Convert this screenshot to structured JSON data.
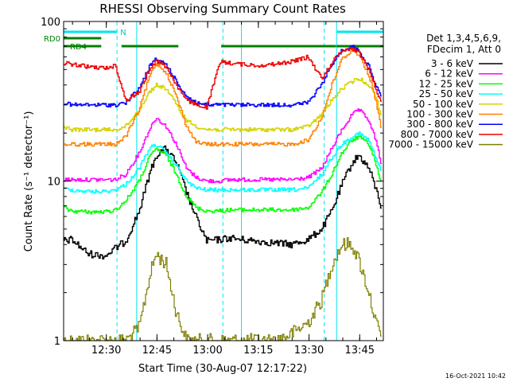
{
  "chart_data": {
    "type": "line",
    "title": "RHESSI Observing Summary Count Rates",
    "xlabel": "Start Time (30-Aug-07 12:17:22)",
    "ylabel": "Count Rate (s⁻¹ detector⁻¹)",
    "y_scale": "log",
    "ylim": [
      1,
      100
    ],
    "xlim": [
      "12:17:22",
      "13:52:00"
    ],
    "x_ticks": [
      "12:30",
      "12:45",
      "13:00",
      "13:15",
      "13:30",
      "13:45"
    ],
    "y_ticks": [
      "1",
      "10",
      "100"
    ],
    "legend_placement": "right",
    "legend_header": [
      "Det 1,3,4,5,6,9,",
      "FDecim 1, Att 0"
    ],
    "footer_date": "16-Oct-2021 10:42",
    "flag_labels": [
      "N",
      "RD0",
      "RD4"
    ],
    "colors": {
      "3 - 6 keV": "#000000",
      "6 - 12 keV": "#ff00ff",
      "12 - 25 keV": "#00ff00",
      "25 - 50 keV": "#00ffff",
      "50 - 100 keV": "#d4d400",
      "100 - 300 keV": "#ff8000",
      "300 - 800 keV": "#0000ff",
      "800 - 7000 keV": "#ee0000",
      "7000 - 15000 keV": "#808000"
    },
    "day_intervals": [
      [
        "12:17:22",
        "12:33:10"
      ],
      [
        "12:39:00",
        "13:04:30"
      ],
      [
        "13:10:00",
        "13:34:30"
      ],
      [
        "13:38:10",
        "13:52:00"
      ]
    ],
    "flag_bars": {
      "N": [
        [
          "12:17:22",
          "12:33:10"
        ],
        [
          "13:38:10",
          "13:52:00"
        ]
      ],
      "RD4": [
        [
          "12:17:22",
          "12:28:30"
        ],
        [
          "12:34:30",
          "12:51:20"
        ],
        [
          "13:04:00",
          "13:38:00"
        ],
        [
          "13:38:10",
          "13:52:00"
        ]
      ]
    },
    "series": [
      {
        "name": "3 - 6 keV",
        "x": [
          "12:17:22",
          "12:20",
          "12:25",
          "12:30",
          "12:33",
          "12:36",
          "12:40",
          "12:43",
          "12:45",
          "12:48",
          "12:51",
          "12:54",
          "12:57",
          "13:00",
          "13:04",
          "13:07",
          "13:10",
          "13:15",
          "13:20",
          "13:25",
          "13:30",
          "13:34",
          "13:37",
          "13:40",
          "13:43",
          "13:45",
          "13:48",
          "13:50",
          "13:52"
        ],
        "y": [
          4.2,
          4.3,
          3.5,
          3.4,
          3.8,
          4.2,
          6.5,
          11,
          14.5,
          16,
          13,
          8.5,
          5.8,
          4.2,
          4.3,
          4.4,
          4.3,
          4.2,
          4.1,
          4.0,
          4.3,
          5.0,
          6.5,
          9.5,
          13,
          14.5,
          12,
          9,
          6.5
        ]
      },
      {
        "name": "6 - 12 keV",
        "x": [
          "12:17:22",
          "12:20",
          "12:25",
          "12:30",
          "12:33",
          "12:36",
          "12:40",
          "12:43",
          "12:45",
          "12:48",
          "12:51",
          "12:54",
          "12:57",
          "13:00",
          "13:04",
          "13:07",
          "13:10",
          "13:15",
          "13:20",
          "13:25",
          "13:30",
          "13:34",
          "13:37",
          "13:40",
          "13:43",
          "13:45",
          "13:48",
          "13:50",
          "13:52"
        ],
        "y": [
          10.2,
          10.2,
          10.2,
          10.2,
          10.2,
          11,
          15,
          21,
          25,
          22,
          17,
          12,
          10.5,
          10,
          10,
          10.2,
          10.2,
          10.2,
          10.2,
          10.2,
          10.5,
          12,
          16,
          21,
          26,
          28,
          24,
          18,
          12
        ]
      },
      {
        "name": "12 - 25 keV",
        "x": [
          "12:17:22",
          "12:20",
          "12:25",
          "12:30",
          "12:33",
          "12:36",
          "12:40",
          "12:43",
          "12:45",
          "12:48",
          "12:51",
          "12:54",
          "12:57",
          "13:00",
          "13:04",
          "13:07",
          "13:10",
          "13:15",
          "13:20",
          "13:25",
          "13:30",
          "13:34",
          "13:37",
          "13:40",
          "13:43",
          "13:45",
          "13:48",
          "13:50",
          "13:52"
        ],
        "y": [
          6.8,
          6.5,
          6.4,
          6.4,
          6.6,
          7.5,
          10,
          14,
          16,
          14.5,
          11,
          8,
          6.8,
          6.5,
          6.5,
          6.6,
          6.6,
          6.6,
          6.6,
          6.6,
          6.8,
          8.5,
          11,
          15,
          18,
          19,
          17,
          13,
          9
        ]
      },
      {
        "name": "25 - 50 keV",
        "x": [
          "12:17:22",
          "12:20",
          "12:25",
          "12:30",
          "12:33",
          "12:36",
          "12:40",
          "12:43",
          "12:45",
          "12:48",
          "12:51",
          "12:54",
          "12:57",
          "13:00",
          "13:04",
          "13:07",
          "13:10",
          "13:15",
          "13:20",
          "13:25",
          "13:30",
          "13:34",
          "13:37",
          "13:40",
          "13:43",
          "13:45",
          "13:48",
          "13:50",
          "13:52"
        ],
        "y": [
          9,
          8.8,
          8.6,
          8.6,
          8.8,
          9.5,
          12,
          16,
          17,
          15,
          12.5,
          10,
          9,
          8.8,
          8.8,
          8.8,
          8.8,
          8.8,
          8.8,
          8.8,
          9,
          11,
          14,
          17,
          19,
          20,
          18,
          14,
          11
        ]
      },
      {
        "name": "50 - 100 keV",
        "x": [
          "12:17:22",
          "12:20",
          "12:25",
          "12:30",
          "12:33",
          "12:36",
          "12:40",
          "12:43",
          "12:45",
          "12:48",
          "12:51",
          "12:54",
          "12:57",
          "13:00",
          "13:04",
          "13:07",
          "13:10",
          "13:15",
          "13:20",
          "13:25",
          "13:30",
          "13:34",
          "13:37",
          "13:40",
          "13:43",
          "13:45",
          "13:48",
          "13:50",
          "13:52"
        ],
        "y": [
          22,
          21,
          21,
          21,
          21,
          22,
          28,
          36,
          40,
          38,
          30,
          24,
          22,
          21,
          21,
          21,
          21,
          21,
          21,
          21,
          22,
          26,
          32,
          38,
          42,
          44,
          40,
          34,
          24
        ]
      },
      {
        "name": "100 - 300 keV",
        "x": [
          "12:17:22",
          "12:20",
          "12:25",
          "12:30",
          "12:33",
          "12:36",
          "12:40",
          "12:43",
          "12:45",
          "12:48",
          "12:51",
          "12:54",
          "12:57",
          "13:00",
          "13:04",
          "13:07",
          "13:10",
          "13:15",
          "13:20",
          "13:25",
          "13:30",
          "13:34",
          "13:37",
          "13:40",
          "13:43",
          "13:45",
          "13:48",
          "13:50",
          "13:52"
        ],
        "y": [
          17,
          17,
          17,
          17,
          17,
          19,
          28,
          45,
          55,
          48,
          34,
          22,
          17.5,
          17,
          17,
          17,
          17,
          17,
          17,
          17,
          18,
          25,
          40,
          58,
          66,
          62,
          46,
          32,
          20
        ]
      },
      {
        "name": "300 - 800 keV",
        "x": [
          "12:17:22",
          "12:20",
          "12:25",
          "12:30",
          "12:33",
          "12:36",
          "12:40",
          "12:43",
          "12:45",
          "12:48",
          "12:51",
          "12:54",
          "12:57",
          "13:00",
          "13:04",
          "13:07",
          "13:10",
          "13:15",
          "13:20",
          "13:25",
          "13:30",
          "13:34",
          "13:37",
          "13:40",
          "13:43",
          "13:45",
          "13:48",
          "13:50",
          "13:52"
        ],
        "y": [
          31,
          30,
          30,
          30,
          30,
          31,
          38,
          52,
          58,
          54,
          42,
          34,
          31,
          30,
          30,
          30,
          30,
          30,
          30,
          30,
          31,
          40,
          54,
          66,
          70,
          66,
          52,
          40,
          32
        ]
      },
      {
        "name": "800 - 7000 keV",
        "x": [
          "12:17:22",
          "12:20",
          "12:25",
          "12:30",
          "12:33",
          "12:36",
          "12:40",
          "12:43",
          "12:45",
          "12:48",
          "12:51",
          "12:54",
          "12:57",
          "13:00",
          "13:04",
          "13:07",
          "13:10",
          "13:15",
          "13:20",
          "13:25",
          "13:30",
          "13:34",
          "13:37",
          "13:40",
          "13:43",
          "13:45",
          "13:48",
          "13:50",
          "13:52"
        ],
        "y": [
          55,
          54,
          52,
          51,
          53,
          32,
          36,
          50,
          57,
          52,
          40,
          32,
          30,
          29,
          56,
          55,
          54,
          53,
          54,
          56,
          60,
          44,
          55,
          66,
          68,
          64,
          50,
          38,
          30
        ]
      },
      {
        "name": "7000 - 15000 keV",
        "x": [
          "12:17:22",
          "12:20",
          "12:25",
          "12:30",
          "12:33",
          "12:36",
          "12:40",
          "12:43",
          "12:45",
          "12:48",
          "12:51",
          "12:54",
          "12:57",
          "13:00",
          "13:04",
          "13:07",
          "13:10",
          "13:15",
          "13:20",
          "13:25",
          "13:30",
          "13:34",
          "13:37",
          "13:40",
          "13:43",
          "13:45",
          "13:48",
          "13:50",
          "13:52"
        ],
        "y": [
          1.0,
          1.0,
          1.0,
          1.0,
          1.0,
          1.0,
          1.2,
          2.5,
          3.5,
          3.0,
          1.5,
          1.0,
          1.0,
          1.0,
          1.0,
          1.0,
          1.0,
          1.0,
          1.0,
          1.1,
          1.3,
          1.8,
          3.0,
          4.0,
          4.0,
          3.2,
          2.0,
          1.3,
          1.0
        ]
      }
    ]
  }
}
